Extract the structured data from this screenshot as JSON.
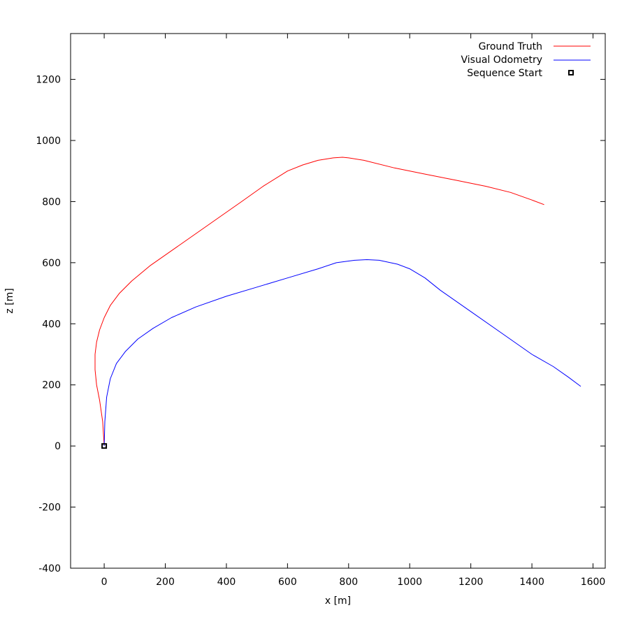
{
  "chart_data": {
    "type": "line",
    "xlabel": "x [m]",
    "ylabel": "z [m]",
    "xlim": [
      -110,
      1640
    ],
    "ylim": [
      -400,
      1350
    ],
    "xticks": [
      0,
      200,
      400,
      600,
      800,
      1000,
      1200,
      1400,
      1600
    ],
    "yticks": [
      -400,
      -200,
      0,
      200,
      400,
      600,
      800,
      1000,
      1200
    ],
    "grid": false,
    "legend_position": "top-right",
    "series": [
      {
        "name": "Ground Truth",
        "color": "#ff0000",
        "x": [
          0,
          -5,
          -15,
          -25,
          -30,
          -30,
          -25,
          -15,
          0,
          20,
          50,
          90,
          150,
          250,
          350,
          450,
          520,
          600,
          650,
          700,
          750,
          780,
          800,
          850,
          950,
          1050,
          1150,
          1250,
          1330,
          1400,
          1440
        ],
        "y": [
          0,
          80,
          150,
          200,
          250,
          300,
          340,
          380,
          420,
          460,
          500,
          540,
          590,
          660,
          730,
          800,
          850,
          900,
          920,
          935,
          943,
          945,
          943,
          935,
          910,
          890,
          870,
          850,
          830,
          805,
          790
        ]
      },
      {
        "name": "Visual Odometry",
        "color": "#0000ff",
        "x": [
          0,
          2,
          8,
          20,
          40,
          70,
          110,
          160,
          220,
          300,
          400,
          500,
          600,
          700,
          760,
          820,
          860,
          900,
          960,
          1000,
          1050,
          1100,
          1200,
          1300,
          1400,
          1470,
          1520,
          1560
        ],
        "y": [
          0,
          80,
          160,
          220,
          270,
          310,
          350,
          385,
          420,
          455,
          490,
          520,
          550,
          580,
          600,
          608,
          610,
          608,
          595,
          580,
          550,
          510,
          440,
          370,
          300,
          260,
          225,
          195
        ]
      },
      {
        "name": "Sequence Start",
        "color": "#000000",
        "marker": "square",
        "x": [
          0
        ],
        "y": [
          0
        ]
      }
    ]
  }
}
